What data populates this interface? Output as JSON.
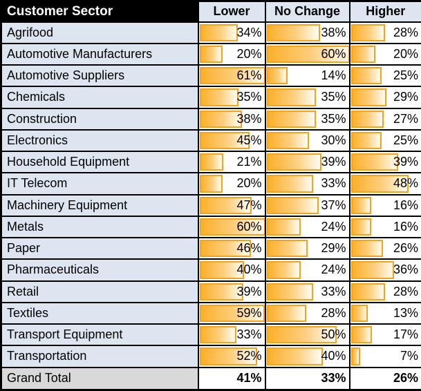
{
  "chart_data": {
    "type": "table",
    "description": "Customer sector sentiment table with in-cell gradient data bars",
    "unit": "%",
    "header": {
      "sector_column": "Customer Sector",
      "value_columns": [
        "Lower",
        "No Change",
        "Higher"
      ]
    },
    "rows": [
      {
        "sector": "Agrifood",
        "values": [
          34,
          38,
          28
        ]
      },
      {
        "sector": "Automotive Manufacturers",
        "values": [
          20,
          60,
          20
        ]
      },
      {
        "sector": "Automotive Suppliers",
        "values": [
          61,
          14,
          25
        ]
      },
      {
        "sector": "Chemicals",
        "values": [
          35,
          35,
          29
        ]
      },
      {
        "sector": "Construction",
        "values": [
          38,
          35,
          27
        ]
      },
      {
        "sector": "Electronics",
        "values": [
          45,
          30,
          25
        ]
      },
      {
        "sector": "Household Equipment",
        "values": [
          21,
          39,
          39
        ]
      },
      {
        "sector": "IT Telecom",
        "values": [
          20,
          33,
          48
        ]
      },
      {
        "sector": "Machinery Equipment",
        "values": [
          47,
          37,
          16
        ]
      },
      {
        "sector": "Metals",
        "values": [
          60,
          24,
          16
        ]
      },
      {
        "sector": "Paper",
        "values": [
          46,
          29,
          26
        ]
      },
      {
        "sector": "Pharmaceuticals",
        "values": [
          40,
          24,
          36
        ]
      },
      {
        "sector": "Retail",
        "values": [
          39,
          33,
          28
        ]
      },
      {
        "sector": "Textiles",
        "values": [
          59,
          28,
          13
        ]
      },
      {
        "sector": "Transport Equipment",
        "values": [
          33,
          50,
          17
        ]
      },
      {
        "sector": "Transportation",
        "values": [
          52,
          40,
          7
        ]
      }
    ],
    "grand_total": {
      "label": "Grand Total",
      "values": [
        41,
        33,
        26
      ]
    },
    "layout_hints": {
      "bars": "gradient data bars behind right-aligned percentage text, scaled so 60-61% fills cell",
      "grid": "black gridlines on all cells"
    },
    "colors": {
      "bar_fill_start": "#FBB02A",
      "bar_fill_end": "#FFFAF0",
      "bar_border": "#F5A21D",
      "column_header_bg": "#DDE6F0",
      "row_label_bg": "#DDE6F0",
      "sector_header_bg": "#000000",
      "sector_header_text": "#FFFFFF",
      "grand_total_bg": "#D9D9D9",
      "gridline": "#000000"
    }
  }
}
